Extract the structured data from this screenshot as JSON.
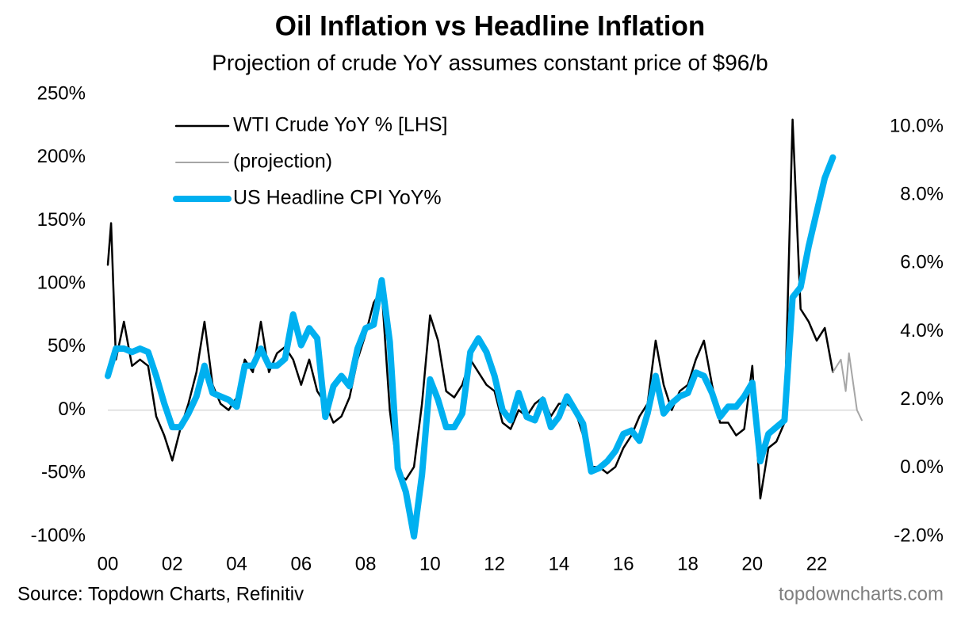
{
  "chart_data": {
    "type": "line",
    "title": "Oil Inflation vs Headline Inflation",
    "subtitle": "Projection of crude YoY assumes constant price of $96/b",
    "source": "Source: Topdown Charts, Refinitiv",
    "watermark": "topdowncharts.com",
    "xlim": [
      2000,
      2023.5
    ],
    "xticks": [
      {
        "value": 2000,
        "label": "00"
      },
      {
        "value": 2002,
        "label": "02"
      },
      {
        "value": 2004,
        "label": "04"
      },
      {
        "value": 2006,
        "label": "06"
      },
      {
        "value": 2008,
        "label": "08"
      },
      {
        "value": 2010,
        "label": "10"
      },
      {
        "value": 2012,
        "label": "12"
      },
      {
        "value": 2014,
        "label": "14"
      },
      {
        "value": 2016,
        "label": "16"
      },
      {
        "value": 2018,
        "label": "18"
      },
      {
        "value": 2020,
        "label": "20"
      },
      {
        "value": 2022,
        "label": "22"
      }
    ],
    "ylim": [
      -100,
      250
    ],
    "yticks": [
      {
        "value": -100,
        "label": "-100%"
      },
      {
        "value": -50,
        "label": "-50%"
      },
      {
        "value": 0,
        "label": "0%"
      },
      {
        "value": 50,
        "label": "50%"
      },
      {
        "value": 100,
        "label": "100%"
      },
      {
        "value": 150,
        "label": "150%"
      },
      {
        "value": 200,
        "label": "200%"
      },
      {
        "value": 250,
        "label": "250%"
      }
    ],
    "y2lim": [
      -2,
      10.95
    ],
    "y2ticks": [
      {
        "value": -2,
        "label": "-2.0%"
      },
      {
        "value": 0,
        "label": "0.0%"
      },
      {
        "value": 2,
        "label": "2.0%"
      },
      {
        "value": 4,
        "label": "4.0%"
      },
      {
        "value": 6,
        "label": "6.0%"
      },
      {
        "value": 8,
        "label": "8.0%"
      },
      {
        "value": 10,
        "label": "10.0%"
      }
    ],
    "zero_line": true,
    "legend": "upper left",
    "series": [
      {
        "name": "WTI Crude YoY % [LHS]",
        "color": "#000000",
        "line_width": 2.5,
        "axis": "y",
        "x": [
          2000.0,
          2000.1,
          2000.25,
          2000.5,
          2000.75,
          2001.0,
          2001.25,
          2001.5,
          2001.75,
          2002.0,
          2002.25,
          2002.5,
          2002.75,
          2003.0,
          2003.25,
          2003.5,
          2003.75,
          2004.0,
          2004.25,
          2004.5,
          2004.75,
          2005.0,
          2005.25,
          2005.5,
          2005.75,
          2006.0,
          2006.25,
          2006.5,
          2006.75,
          2007.0,
          2007.25,
          2007.5,
          2007.75,
          2008.0,
          2008.25,
          2008.5,
          2008.75,
          2009.0,
          2009.25,
          2009.5,
          2009.75,
          2010.0,
          2010.25,
          2010.5,
          2010.75,
          2011.0,
          2011.25,
          2011.5,
          2011.75,
          2012.0,
          2012.25,
          2012.5,
          2012.75,
          2013.0,
          2013.25,
          2013.5,
          2013.75,
          2014.0,
          2014.25,
          2014.5,
          2014.75,
          2015.0,
          2015.25,
          2015.5,
          2015.75,
          2016.0,
          2016.25,
          2016.5,
          2016.75,
          2017.0,
          2017.25,
          2017.5,
          2017.75,
          2018.0,
          2018.25,
          2018.5,
          2018.75,
          2019.0,
          2019.25,
          2019.5,
          2019.75,
          2020.0,
          2020.25,
          2020.5,
          2020.75,
          2021.0,
          2021.25,
          2021.5,
          2021.75,
          2022.0,
          2022.25,
          2022.5
        ],
        "values": [
          115,
          148,
          40,
          70,
          35,
          40,
          35,
          -5,
          -20,
          -40,
          -15,
          5,
          30,
          70,
          20,
          5,
          0,
          10,
          40,
          30,
          70,
          30,
          45,
          50,
          40,
          20,
          40,
          15,
          5,
          -10,
          -5,
          10,
          40,
          60,
          85,
          95,
          0,
          -50,
          -55,
          -45,
          5,
          75,
          55,
          15,
          10,
          20,
          40,
          30,
          20,
          15,
          -10,
          -15,
          0,
          -5,
          5,
          10,
          -5,
          5,
          5,
          0,
          -20,
          -45,
          -45,
          -50,
          -45,
          -30,
          -20,
          -5,
          5,
          55,
          20,
          0,
          15,
          20,
          40,
          55,
          20,
          -10,
          -10,
          -20,
          -15,
          35,
          -70,
          -30,
          -25,
          -10,
          230,
          80,
          70,
          55,
          65,
          30
        ]
      },
      {
        "name": "(projection)",
        "color": "#a6a6a6",
        "line_width": 2,
        "axis": "y",
        "x": [
          2022.5,
          2022.75,
          2022.9,
          2023.0,
          2023.25,
          2023.4
        ],
        "values": [
          30,
          40,
          15,
          45,
          0,
          -8
        ]
      },
      {
        "name": "US Headline CPI YoY%",
        "color": "#00b0f0",
        "line_width": 8,
        "axis": "y2",
        "x": [
          2000.0,
          2000.25,
          2000.5,
          2000.75,
          2001.0,
          2001.25,
          2001.5,
          2001.75,
          2002.0,
          2002.25,
          2002.5,
          2002.75,
          2003.0,
          2003.25,
          2003.5,
          2003.75,
          2004.0,
          2004.25,
          2004.5,
          2004.75,
          2005.0,
          2005.25,
          2005.5,
          2005.75,
          2006.0,
          2006.25,
          2006.5,
          2006.75,
          2007.0,
          2007.25,
          2007.5,
          2007.75,
          2008.0,
          2008.25,
          2008.5,
          2008.75,
          2009.0,
          2009.25,
          2009.5,
          2009.75,
          2010.0,
          2010.25,
          2010.5,
          2010.75,
          2011.0,
          2011.25,
          2011.5,
          2011.75,
          2012.0,
          2012.25,
          2012.5,
          2012.75,
          2013.0,
          2013.25,
          2013.5,
          2013.75,
          2014.0,
          2014.25,
          2014.5,
          2014.75,
          2015.0,
          2015.25,
          2015.5,
          2015.75,
          2016.0,
          2016.25,
          2016.5,
          2016.75,
          2017.0,
          2017.25,
          2017.5,
          2017.75,
          2018.0,
          2018.25,
          2018.5,
          2018.75,
          2019.0,
          2019.25,
          2019.5,
          2019.75,
          2020.0,
          2020.25,
          2020.5,
          2020.75,
          2021.0,
          2021.25,
          2021.5,
          2021.75,
          2022.0,
          2022.25,
          2022.5
        ],
        "values": [
          2.7,
          3.5,
          3.5,
          3.4,
          3.5,
          3.4,
          2.7,
          1.9,
          1.2,
          1.2,
          1.6,
          2.1,
          3.0,
          2.2,
          2.1,
          2.0,
          1.8,
          3.0,
          3.0,
          3.5,
          3.0,
          3.0,
          3.2,
          4.5,
          3.6,
          4.1,
          3.8,
          1.5,
          2.4,
          2.7,
          2.4,
          3.5,
          4.1,
          4.2,
          5.5,
          3.7,
          0.0,
          -0.7,
          -2.0,
          -0.2,
          2.6,
          2.0,
          1.2,
          1.2,
          1.6,
          3.4,
          3.8,
          3.4,
          2.7,
          1.7,
          1.4,
          2.2,
          1.5,
          1.4,
          2.0,
          1.2,
          1.5,
          2.1,
          1.7,
          1.3,
          -0.1,
          0.0,
          0.2,
          0.5,
          1.0,
          1.1,
          0.8,
          1.6,
          2.7,
          1.6,
          1.9,
          2.1,
          2.2,
          2.8,
          2.7,
          2.2,
          1.5,
          1.8,
          1.8,
          2.1,
          2.5,
          0.2,
          1.0,
          1.2,
          1.4,
          5.0,
          5.3,
          6.5,
          7.5,
          8.5,
          9.1
        ]
      }
    ]
  }
}
